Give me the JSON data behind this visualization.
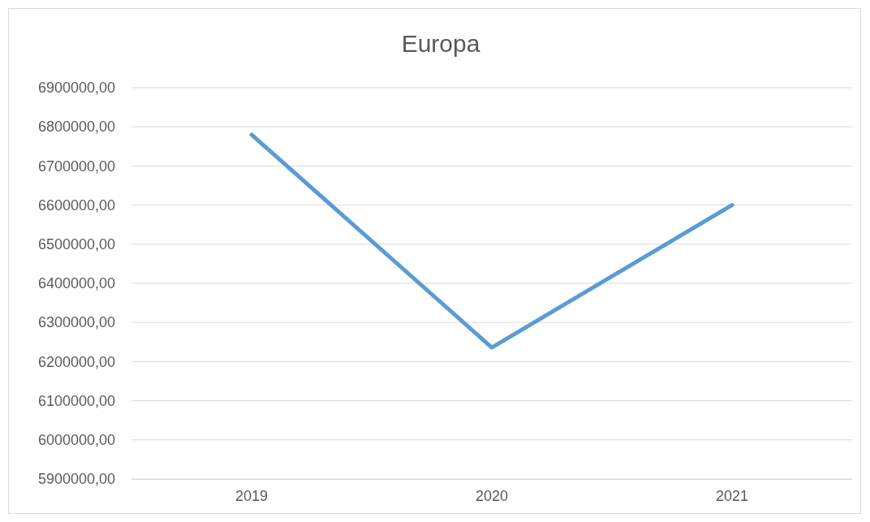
{
  "chart_data": {
    "type": "line",
    "title": "Europa",
    "categories": [
      "2019",
      "2020",
      "2021"
    ],
    "series": [
      {
        "color": "#5b9bd5",
        "values": [
          6780000,
          6236000,
          6600000
        ]
      }
    ],
    "ylim": [
      5900000,
      6900000
    ],
    "yticks": [
      {
        "value": 5900000,
        "label": "5900000,00"
      },
      {
        "value": 6000000,
        "label": "6000000,00"
      },
      {
        "value": 6100000,
        "label": "6100000,00"
      },
      {
        "value": 6200000,
        "label": "6200000,00"
      },
      {
        "value": 6300000,
        "label": "6300000,00"
      },
      {
        "value": 6400000,
        "label": "6400000,00"
      },
      {
        "value": 6500000,
        "label": "6500000,00"
      },
      {
        "value": 6600000,
        "label": "6600000,00"
      },
      {
        "value": 6700000,
        "label": "6700000,00"
      },
      {
        "value": 6800000,
        "label": "6800000,00"
      },
      {
        "value": 6900000,
        "label": "6900000,00"
      }
    ],
    "grid": "y",
    "marker": "none",
    "line_style": "solid"
  }
}
